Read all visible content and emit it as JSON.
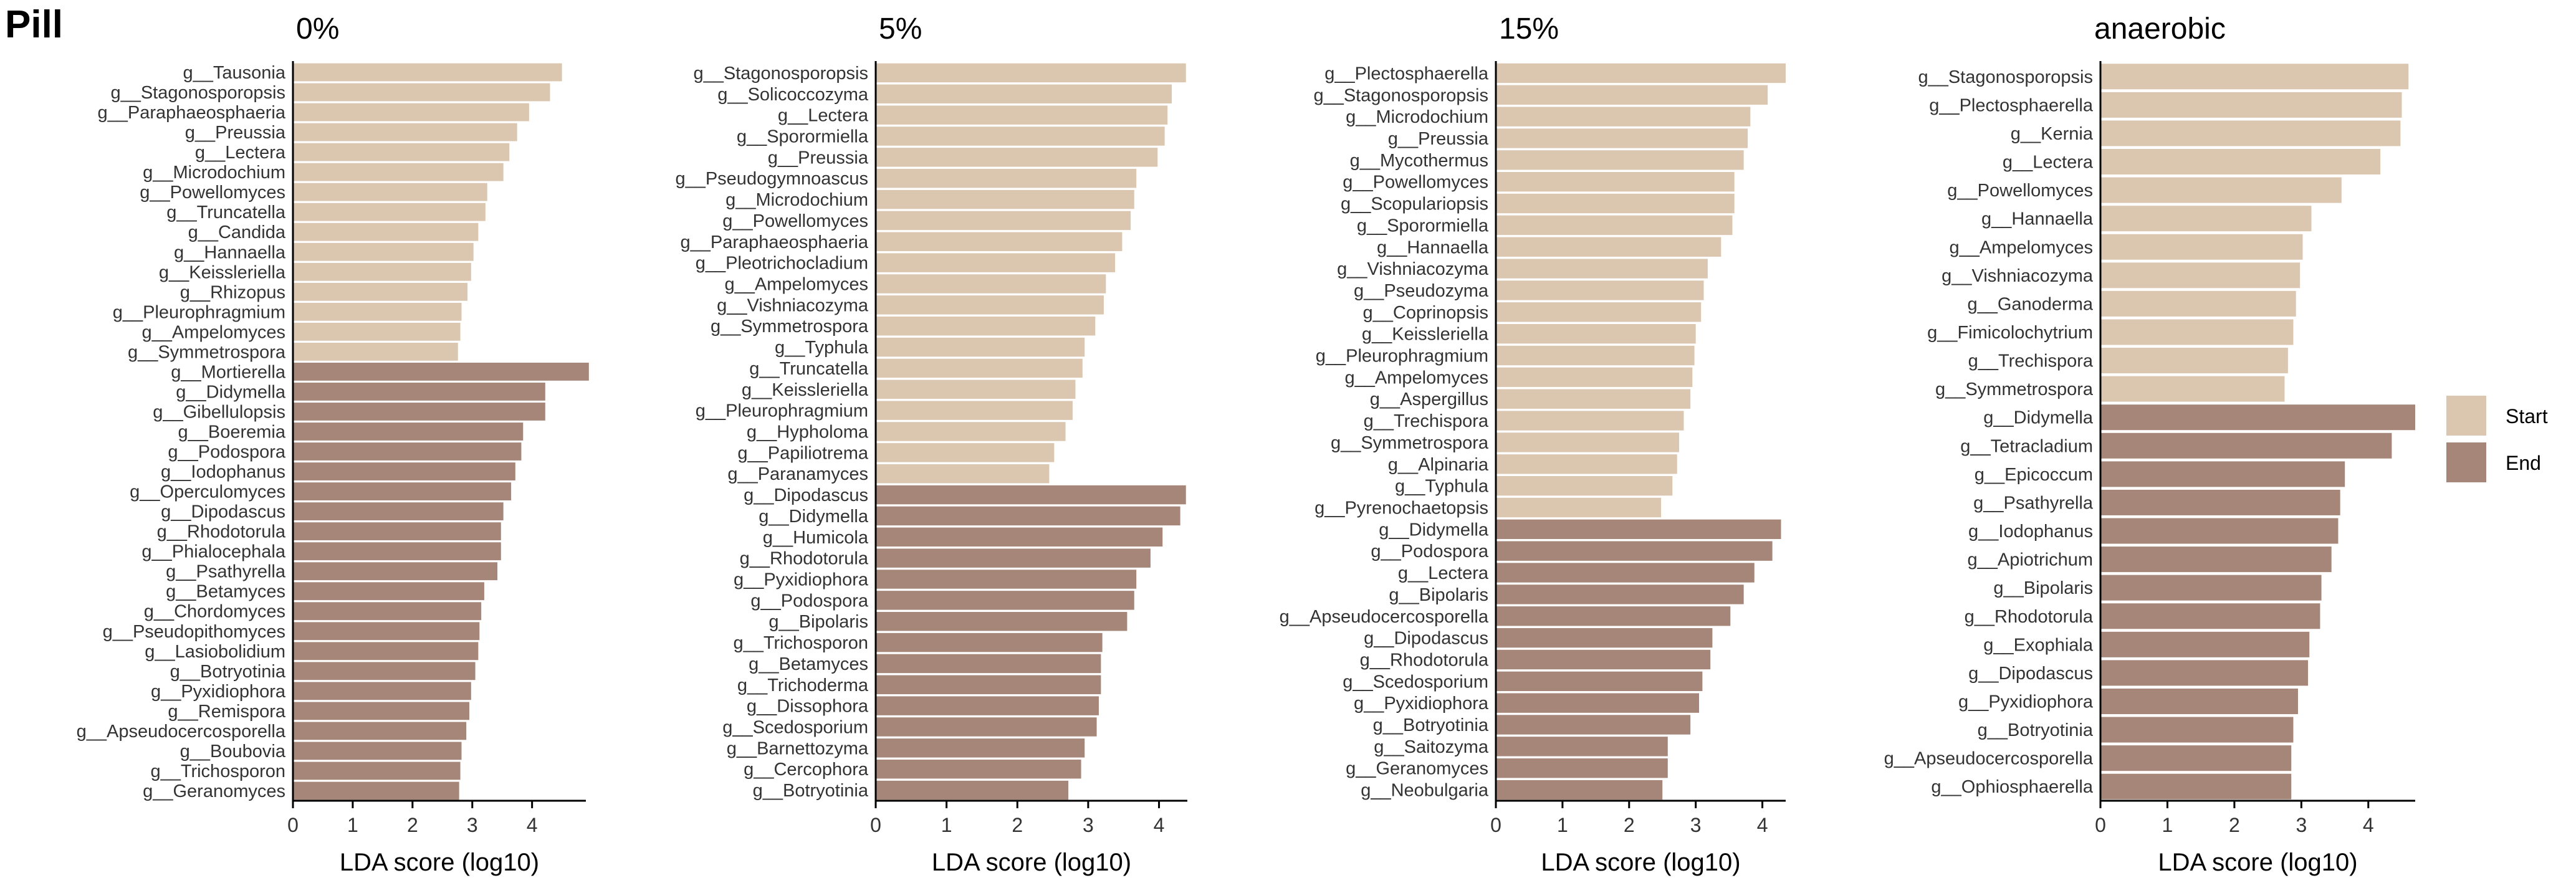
{
  "figure_title": "Pill",
  "colors": {
    "Start": "#dbc6b0",
    "End": "#a58678"
  },
  "legend": {
    "position": "right",
    "items": [
      {
        "label": "Start"
      },
      {
        "label": "End"
      }
    ]
  },
  "chart_data": [
    {
      "type": "bar",
      "orientation": "horizontal",
      "title": "0%",
      "xlabel": "LDA score (log10)",
      "xlim": [
        0,
        4.9
      ],
      "xticks": [
        0,
        1,
        2,
        3,
        4
      ],
      "categories": [
        "g__Tausonia",
        "g__Stagonosporopsis",
        "g__Paraphaeosphaeria",
        "g__Preussia",
        "g__Lectera",
        "g__Microdochium",
        "g__Powellomyces",
        "g__Truncatella",
        "g__Candida",
        "g__Hannaella",
        "g__Keissleriella",
        "g__Rhizopus",
        "g__Pleurophragmium",
        "g__Ampelomyces",
        "g__Symmetrospora",
        "g__Mortierella",
        "g__Didymella",
        "g__Gibellulopsis",
        "g__Boeremia",
        "g__Podospora",
        "g__Iodophanus",
        "g__Operculomyces",
        "g__Dipodascus",
        "g__Rhodotorula",
        "g__Phialocephala",
        "g__Psathyrella",
        "g__Betamyces",
        "g__Chordomyces",
        "g__Pseudopithomyces",
        "g__Lasiobolidium",
        "g__Botryotinia",
        "g__Pyxidiophora",
        "g__Remispora",
        "g__Apseudocercosporella",
        "g__Boubovia",
        "g__Trichosporon",
        "g__Geranomyces"
      ],
      "values": [
        4.5,
        4.3,
        3.95,
        3.75,
        3.62,
        3.52,
        3.25,
        3.22,
        3.1,
        3.02,
        2.98,
        2.92,
        2.82,
        2.8,
        2.76,
        4.95,
        4.22,
        4.22,
        3.85,
        3.82,
        3.72,
        3.65,
        3.52,
        3.48,
        3.48,
        3.42,
        3.2,
        3.15,
        3.12,
        3.1,
        3.05,
        2.98,
        2.95,
        2.9,
        2.82,
        2.8,
        2.78
      ],
      "groups": [
        "Start",
        "Start",
        "Start",
        "Start",
        "Start",
        "Start",
        "Start",
        "Start",
        "Start",
        "Start",
        "Start",
        "Start",
        "Start",
        "Start",
        "Start",
        "End",
        "End",
        "End",
        "End",
        "End",
        "End",
        "End",
        "End",
        "End",
        "End",
        "End",
        "End",
        "End",
        "End",
        "End",
        "End",
        "End",
        "End",
        "End",
        "End",
        "End",
        "End"
      ]
    },
    {
      "type": "bar",
      "orientation": "horizontal",
      "title": "5%",
      "xlabel": "LDA score (log10)",
      "xlim": [
        0,
        4.4
      ],
      "xticks": [
        0,
        1,
        2,
        3,
        4
      ],
      "categories": [
        "g__Stagonosporopsis",
        "g__Solicoccozyma",
        "g__Lectera",
        "g__Sporormiella",
        "g__Preussia",
        "g__Pseudogymnoascus",
        "g__Microdochium",
        "g__Powellomyces",
        "g__Paraphaeosphaeria",
        "g__Pleotrichocladium",
        "g__Ampelomyces",
        "g__Vishniacozyma",
        "g__Symmetrospora",
        "g__Typhula",
        "g__Truncatella",
        "g__Keissleriella",
        "g__Pleurophragmium",
        "g__Hypholoma",
        "g__Papiliotrema",
        "g__Paranamyces",
        "g__Dipodascus",
        "g__Didymella",
        "g__Humicola",
        "g__Rhodotorula",
        "g__Pyxidiophora",
        "g__Podospora",
        "g__Bipolaris",
        "g__Trichosporon",
        "g__Betamyces",
        "g__Trichoderma",
        "g__Dissophora",
        "g__Scedosporium",
        "g__Barnettozyma",
        "g__Cercophora",
        "g__Botryotinia"
      ],
      "values": [
        4.38,
        4.18,
        4.12,
        4.08,
        3.98,
        3.68,
        3.65,
        3.6,
        3.48,
        3.38,
        3.25,
        3.22,
        3.1,
        2.95,
        2.92,
        2.82,
        2.78,
        2.68,
        2.52,
        2.45,
        4.38,
        4.3,
        4.05,
        3.88,
        3.68,
        3.65,
        3.55,
        3.2,
        3.18,
        3.18,
        3.15,
        3.12,
        2.95,
        2.9,
        2.72
      ],
      "groups": [
        "Start",
        "Start",
        "Start",
        "Start",
        "Start",
        "Start",
        "Start",
        "Start",
        "Start",
        "Start",
        "Start",
        "Start",
        "Start",
        "Start",
        "Start",
        "Start",
        "Start",
        "Start",
        "Start",
        "Start",
        "End",
        "End",
        "End",
        "End",
        "End",
        "End",
        "End",
        "End",
        "End",
        "End",
        "End",
        "End",
        "End",
        "End",
        "End"
      ]
    },
    {
      "type": "bar",
      "orientation": "horizontal",
      "title": "15%",
      "xlabel": "LDA score (log10)",
      "xlim": [
        0,
        4.35
      ],
      "xticks": [
        0,
        1,
        2,
        3,
        4
      ],
      "categories": [
        "g__Plectosphaerella",
        "g__Stagonosporopsis",
        "g__Microdochium",
        "g__Preussia",
        "g__Mycothermus",
        "g__Powellomyces",
        "g__Scopulariopsis",
        "g__Sporormiella",
        "g__Hannaella",
        "g__Vishniacozyma",
        "g__Pseudozyma",
        "g__Coprinopsis",
        "g__Keissleriella",
        "g__Pleurophragmium",
        "g__Ampelomyces",
        "g__Aspergillus",
        "g__Trechispora",
        "g__Symmetrospora",
        "g__Alpinaria",
        "g__Typhula",
        "g__Pyrenochaetopsis",
        "g__Didymella",
        "g__Podospora",
        "g__Lectera",
        "g__Bipolaris",
        "g__Apseudocercosporella",
        "g__Dipodascus",
        "g__Rhodotorula",
        "g__Scedosporium",
        "g__Pyxidiophora",
        "g__Botryotinia",
        "g__Saitozyma",
        "g__Geranomyces",
        "g__Neobulgaria"
      ],
      "values": [
        4.35,
        4.08,
        3.82,
        3.78,
        3.72,
        3.58,
        3.58,
        3.55,
        3.38,
        3.18,
        3.12,
        3.08,
        3.0,
        2.98,
        2.95,
        2.92,
        2.82,
        2.75,
        2.72,
        2.65,
        2.48,
        4.28,
        4.15,
        3.88,
        3.72,
        3.52,
        3.25,
        3.22,
        3.1,
        3.05,
        2.92,
        2.58,
        2.58,
        2.5
      ],
      "groups": [
        "Start",
        "Start",
        "Start",
        "Start",
        "Start",
        "Start",
        "Start",
        "Start",
        "Start",
        "Start",
        "Start",
        "Start",
        "Start",
        "Start",
        "Start",
        "Start",
        "Start",
        "Start",
        "Start",
        "Start",
        "Start",
        "End",
        "End",
        "End",
        "End",
        "End",
        "End",
        "End",
        "End",
        "End",
        "End",
        "End",
        "End",
        "End"
      ]
    },
    {
      "type": "bar",
      "orientation": "horizontal",
      "title": "anaerobic",
      "xlabel": "LDA score (log10)",
      "xlim": [
        0,
        4.7
      ],
      "xticks": [
        0,
        1,
        2,
        3,
        4
      ],
      "categories": [
        "g__Stagonosporopsis",
        "g__Plectosphaerella",
        "g__Kernia",
        "g__Lectera",
        "g__Powellomyces",
        "g__Hannaella",
        "g__Ampelomyces",
        "g__Vishniacozyma",
        "g__Ganoderma",
        "g__Fimicolochytrium",
        "g__Trechispora",
        "g__Symmetrospora",
        "g__Didymella",
        "g__Tetracladium",
        "g__Epicoccum",
        "g__Psathyrella",
        "g__Iodophanus",
        "g__Apiotrichum",
        "g__Bipolaris",
        "g__Rhodotorula",
        "g__Exophiala",
        "g__Dipodascus",
        "g__Pyxidiophora",
        "g__Botryotinia",
        "g__Apseudocercosporella",
        "g__Ophiosphaerella"
      ],
      "values": [
        4.6,
        4.5,
        4.48,
        4.18,
        3.6,
        3.15,
        3.02,
        2.98,
        2.92,
        2.88,
        2.8,
        2.75,
        4.7,
        4.35,
        3.65,
        3.58,
        3.55,
        3.45,
        3.3,
        3.28,
        3.12,
        3.1,
        2.95,
        2.88,
        2.85,
        2.85
      ],
      "groups": [
        "Start",
        "Start",
        "Start",
        "Start",
        "Start",
        "Start",
        "Start",
        "Start",
        "Start",
        "Start",
        "Start",
        "Start",
        "End",
        "End",
        "End",
        "End",
        "End",
        "End",
        "End",
        "End",
        "End",
        "End",
        "End",
        "End",
        "End",
        "End"
      ]
    }
  ]
}
